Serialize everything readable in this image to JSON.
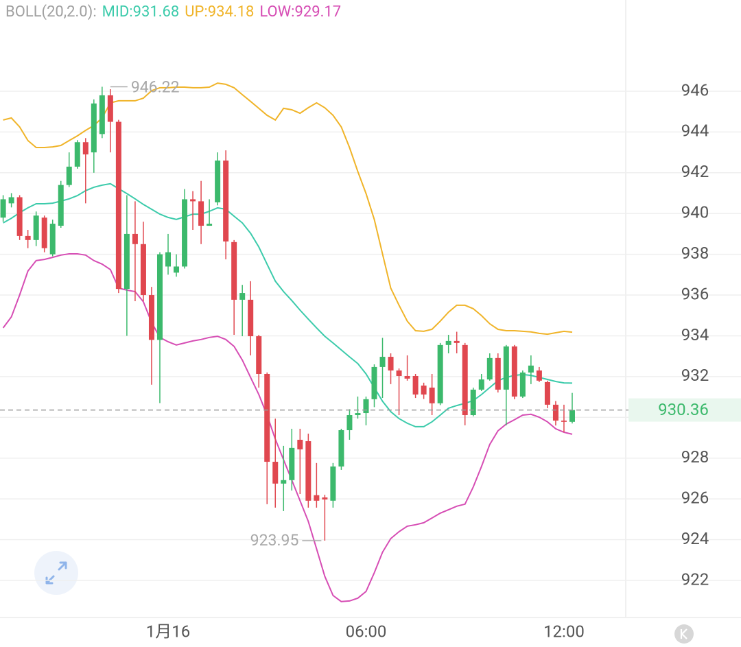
{
  "chart_data": {
    "type": "candlestick",
    "indicator": "BOLL(20,2.0):",
    "legend_separator": ":",
    "categories": [
      null,
      null,
      null,
      null,
      null,
      null,
      null,
      null,
      null,
      null,
      null,
      null,
      null,
      null,
      null,
      null,
      null,
      null,
      null,
      null,
      null,
      null,
      null,
      null,
      null,
      null,
      null,
      null,
      null,
      null,
      null,
      null,
      null,
      null,
      null,
      null,
      null,
      null,
      null,
      null,
      null,
      null,
      null,
      null,
      null,
      null,
      null,
      null,
      null,
      null,
      null,
      null,
      null,
      null,
      null,
      null,
      null,
      null,
      null,
      null,
      null,
      null,
      null,
      null,
      null,
      null,
      null,
      null,
      null,
      null
    ],
    "xticks": [
      {
        "value": 20,
        "label": "1月16"
      },
      {
        "value": 44,
        "label": "06:00"
      },
      {
        "value": 68,
        "label": "12:00"
      }
    ],
    "ylim": [
      920.18,
      949.13
    ],
    "yticks": [
      922,
      924,
      926,
      928,
      930,
      932,
      934,
      936,
      938,
      940,
      942,
      944,
      946
    ],
    "grid": true,
    "up_color": "#3cb96c",
    "down_color": "#e0474f",
    "open": [
      939.8,
      940.5,
      940.8,
      938.9,
      938.7,
      939.8,
      938.0,
      939.4,
      941.4,
      942.3,
      943.5,
      943.0,
      943.9,
      945.8,
      944.5,
      936.3,
      939.0,
      938.5,
      936.0,
      933.8,
      937.4,
      937.1,
      937.4,
      940.7,
      940.6,
      939.4,
      940.55,
      942.6,
      938.6,
      935.77,
      935.77,
      933.98,
      932.13,
      927.82,
      926.75,
      926.92,
      928.9,
      928.83,
      926.18,
      926.07,
      925.91,
      927.59,
      929.37,
      930.11,
      930.21,
      930.89,
      932.47,
      932.97,
      932.3,
      932.03,
      932.03,
      931.56,
      931.46,
      930.69,
      933.55,
      933.75,
      933.55,
      930.11,
      931.36,
      931.86,
      932.91,
      931.36,
      933.48,
      931.02,
      932.2,
      932.3,
      931.73,
      930.62,
      929.84,
      929.78
    ],
    "high": [
      940.9,
      941.0,
      940.9,
      939.2,
      940.1,
      939.9,
      939.7,
      941.6,
      943.0,
      943.6,
      943.7,
      945.6,
      946.22,
      946.1,
      944.6,
      940.9,
      940.6,
      939.6,
      936.4,
      938.1,
      939.0,
      938.0,
      941.2,
      941.1,
      941.6,
      940.7,
      943.0,
      943.1,
      938.7,
      936.5,
      936.68,
      934.05,
      932.2,
      929.94,
      928.6,
      929.44,
      929.44,
      929.2,
      927.76,
      926.2,
      927.76,
      929.44,
      930.4,
      931.02,
      931.02,
      932.6,
      933.9,
      933.14,
      932.4,
      933.04,
      932.13,
      931.7,
      932.13,
      933.65,
      934.05,
      934.2,
      933.65,
      931.46,
      932.13,
      933.14,
      933.14,
      933.55,
      933.55,
      932.3,
      933.04,
      932.47,
      931.8,
      930.8,
      930.62,
      931.2
    ],
    "low": [
      939.6,
      940.3,
      938.7,
      938.3,
      938.4,
      938.1,
      937.9,
      939.3,
      941.3,
      942.2,
      940.5,
      942.0,
      943.7,
      943.0,
      936.1,
      934.0,
      935.7,
      935.7,
      931.6,
      930.7,
      937.0,
      936.9,
      937.3,
      939.2,
      938.5,
      939.4,
      940.4,
      937.75,
      934.05,
      933.98,
      933.04,
      931.46,
      925.74,
      925.57,
      925.4,
      926.41,
      926.24,
      925.57,
      925.57,
      923.95,
      925.57,
      927.42,
      928.9,
      929.94,
      929.61,
      930.5,
      930.95,
      931.63,
      930.11,
      931.8,
      930.95,
      930.9,
      930.11,
      930.6,
      933.14,
      933.14,
      929.61,
      930.05,
      931.29,
      931.8,
      931.22,
      929.61,
      930.89,
      930.95,
      931.63,
      931.73,
      930.45,
      929.6,
      929.27,
      929.7
    ],
    "close": [
      940.7,
      940.8,
      938.9,
      938.7,
      939.9,
      938.3,
      939.5,
      941.4,
      942.3,
      943.5,
      942.9,
      945.4,
      945.8,
      944.5,
      936.3,
      939.0,
      938.5,
      936.0,
      933.8,
      938.0,
      938.1,
      937.4,
      940.7,
      940.6,
      939.4,
      939.5,
      942.6,
      938.63,
      935.77,
      936.1,
      933.98,
      932.13,
      927.82,
      926.75,
      926.92,
      928.5,
      928.43,
      925.91,
      925.91,
      925.97,
      927.59,
      929.37,
      930.11,
      930.21,
      930.89,
      932.47,
      932.97,
      932.3,
      932.03,
      931.9,
      931.12,
      931.12,
      930.69,
      933.55,
      933.75,
      933.65,
      930.11,
      931.36,
      931.86,
      932.91,
      931.36,
      933.48,
      931.02,
      932.2,
      932.54,
      931.8,
      930.62,
      929.84,
      929.78,
      930.36
    ],
    "series": [
      {
        "name": "MID",
        "color": "#3ccbab",
        "last": 931.68,
        "values": [
          939.54,
          939.77,
          940.04,
          940.28,
          940.48,
          940.48,
          940.51,
          940.61,
          940.72,
          940.88,
          941.12,
          941.29,
          941.39,
          941.46,
          941.22,
          940.98,
          940.72,
          940.45,
          940.21,
          939.97,
          939.81,
          939.71,
          939.84,
          939.97,
          939.97,
          940.11,
          940.28,
          940.21,
          939.87,
          939.54,
          939.03,
          938.36,
          937.52,
          936.68,
          936.17,
          935.73,
          935.26,
          934.82,
          934.39,
          933.98,
          933.65,
          933.31,
          932.97,
          932.64,
          932.13,
          931.46,
          930.79,
          930.28,
          929.94,
          929.71,
          929.54,
          929.54,
          929.78,
          930.11,
          930.45,
          930.58,
          930.69,
          930.82,
          931.12,
          931.46,
          931.8,
          931.96,
          932.06,
          932.1,
          932.06,
          931.96,
          931.86,
          931.76,
          931.69,
          931.68
        ]
      },
      {
        "name": "UP",
        "color": "#f0b429",
        "last": 934.18,
        "values": [
          944.59,
          944.69,
          944.25,
          943.58,
          943.24,
          943.24,
          943.27,
          943.34,
          943.58,
          943.81,
          944.08,
          944.32,
          944.69,
          945.43,
          945.53,
          945.53,
          945.53,
          945.66,
          946.03,
          946.17,
          946.17,
          946.2,
          946.2,
          946.17,
          946.17,
          946.2,
          946.4,
          946.34,
          946.17,
          945.83,
          945.5,
          945.16,
          944.82,
          944.59,
          945.16,
          945.09,
          944.92,
          945.19,
          945.43,
          945.19,
          944.82,
          944.25,
          943.24,
          942.06,
          940.98,
          939.71,
          938.02,
          936.34,
          935.5,
          934.72,
          934.25,
          934.22,
          934.32,
          934.72,
          935.16,
          935.5,
          935.5,
          935.33,
          934.99,
          934.59,
          934.32,
          934.25,
          934.25,
          934.22,
          934.19,
          934.12,
          934.08,
          934.15,
          934.22,
          934.18
        ]
      },
      {
        "name": "LOW",
        "color": "#d64db4",
        "last": 929.17,
        "values": [
          934.39,
          934.93,
          936.0,
          937.18,
          937.69,
          937.75,
          937.85,
          937.96,
          938.02,
          938.02,
          937.96,
          937.69,
          937.52,
          937.25,
          936.34,
          936.24,
          936.17,
          935.67,
          934.66,
          933.92,
          933.71,
          933.55,
          933.65,
          933.75,
          933.82,
          933.92,
          933.98,
          933.82,
          933.48,
          932.81,
          931.96,
          931.12,
          930.11,
          928.93,
          927.92,
          926.92,
          925.91,
          924.9,
          923.55,
          922.2,
          921.26,
          920.96,
          920.99,
          921.13,
          921.46,
          922.37,
          923.38,
          924.05,
          924.39,
          924.66,
          924.73,
          924.83,
          925.06,
          925.3,
          925.47,
          925.64,
          925.74,
          926.58,
          927.59,
          928.67,
          929.34,
          929.67,
          929.88,
          930.11,
          930.15,
          930.01,
          929.78,
          929.44,
          929.27,
          929.17
        ]
      }
    ],
    "max_label": 946.22,
    "min_label": 923.95,
    "last_price": 930.36
  }
}
